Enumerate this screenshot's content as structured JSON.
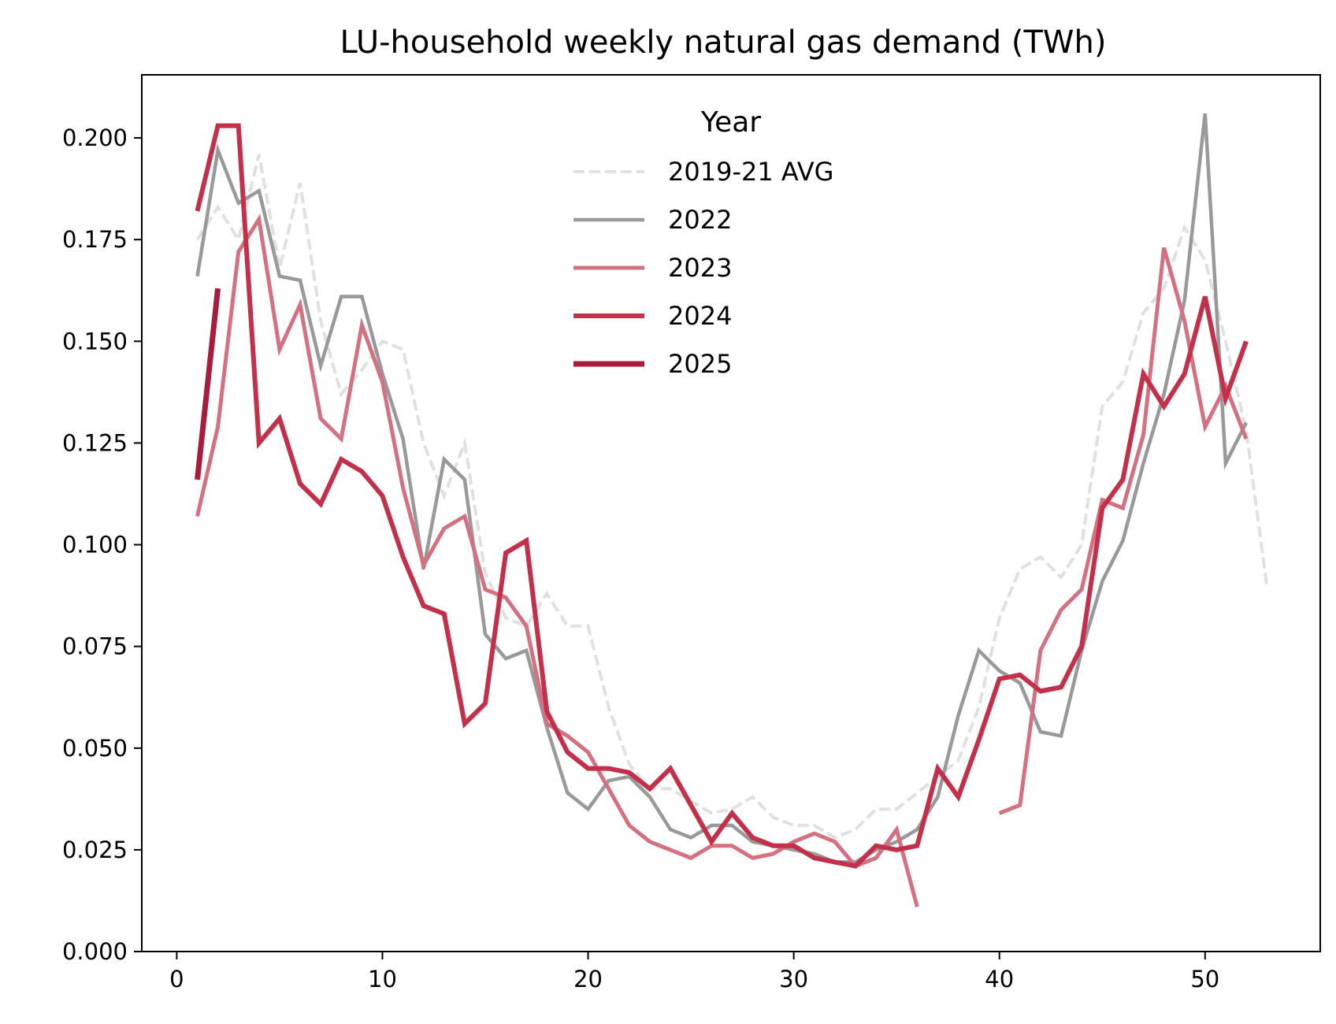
{
  "chart_data": {
    "type": "line",
    "title": "LU-household weekly natural gas demand (TWh)",
    "xlabel": "",
    "ylabel": "",
    "xlim": [
      -1.7,
      55.6
    ],
    "ylim": [
      0,
      0.2155
    ],
    "xticks": [
      0,
      10,
      20,
      30,
      40,
      50
    ],
    "xtick_labels": [
      "0",
      "10",
      "20",
      "30",
      "40",
      "50"
    ],
    "yticks": [
      0,
      0.025,
      0.05,
      0.075,
      0.1,
      0.125,
      0.15,
      0.175,
      0.2
    ],
    "ytick_labels": [
      "0.000",
      "0.025",
      "0.050",
      "0.075",
      "0.100",
      "0.125",
      "0.150",
      "0.175",
      "0.200"
    ],
    "grid": false,
    "legend": {
      "title": "Year",
      "placement": "upper-center"
    },
    "series": [
      {
        "name": "2019-21 AVG",
        "color": "#e0e0e0",
        "dash": true,
        "width": 4,
        "x": [
          1,
          2,
          3,
          4,
          5,
          6,
          7,
          8,
          9,
          10,
          11,
          12,
          13,
          14,
          15,
          16,
          17,
          18,
          19,
          20,
          21,
          22,
          23,
          24,
          25,
          26,
          27,
          28,
          29,
          30,
          31,
          32,
          33,
          34,
          35,
          36,
          37,
          38,
          39,
          40,
          41,
          42,
          43,
          44,
          45,
          46,
          47,
          48,
          49,
          50,
          51,
          52,
          53
        ],
        "y": [
          0.175,
          0.183,
          0.175,
          0.196,
          0.168,
          0.189,
          0.155,
          0.137,
          0.143,
          0.15,
          0.148,
          0.125,
          0.112,
          0.125,
          0.093,
          0.082,
          0.08,
          0.088,
          0.08,
          0.08,
          0.06,
          0.046,
          0.04,
          0.04,
          0.037,
          0.034,
          0.035,
          0.038,
          0.033,
          0.031,
          0.031,
          0.028,
          0.03,
          0.035,
          0.035,
          0.039,
          0.043,
          0.047,
          0.06,
          0.082,
          0.094,
          0.097,
          0.092,
          0.1,
          0.134,
          0.14,
          0.157,
          0.163,
          0.178,
          0.17,
          0.15,
          0.128,
          0.09
        ]
      },
      {
        "name": "2022",
        "color": "#999999",
        "dash": false,
        "width": 4.5,
        "x": [
          1,
          2,
          3,
          4,
          5,
          6,
          7,
          8,
          9,
          10,
          11,
          12,
          13,
          14,
          15,
          16,
          17,
          18,
          19,
          20,
          21,
          22,
          23,
          24,
          25,
          26,
          27,
          28,
          29,
          30,
          31,
          32,
          33,
          34,
          35,
          36,
          37,
          38,
          39,
          40,
          41,
          42,
          43,
          44,
          45,
          46,
          47,
          48,
          49,
          50,
          51,
          52
        ],
        "y": [
          0.166,
          0.197,
          0.184,
          0.187,
          0.166,
          0.165,
          0.144,
          0.161,
          0.161,
          0.142,
          0.126,
          0.094,
          0.121,
          0.116,
          0.078,
          0.072,
          0.074,
          0.055,
          0.039,
          0.035,
          0.042,
          0.043,
          0.038,
          0.03,
          0.028,
          0.031,
          0.031,
          0.027,
          0.026,
          0.025,
          0.024,
          0.022,
          0.022,
          0.025,
          0.027,
          0.03,
          0.038,
          0.058,
          0.074,
          0.069,
          0.066,
          0.054,
          0.053,
          0.074,
          0.091,
          0.101,
          0.12,
          0.137,
          0.16,
          0.206,
          0.12,
          0.13
        ]
      },
      {
        "name": "2023",
        "color": "#d4707f",
        "dash": false,
        "width": 5,
        "x": [
          1,
          2,
          3,
          4,
          5,
          6,
          7,
          8,
          9,
          10,
          11,
          12,
          13,
          14,
          15,
          16,
          17,
          18,
          19,
          20,
          21,
          22,
          23,
          24,
          25,
          26,
          27,
          28,
          29,
          30,
          31,
          32,
          33,
          34,
          35,
          36,
          null,
          40,
          41,
          42,
          43,
          44,
          45,
          46,
          47,
          48,
          49,
          50,
          51,
          52
        ],
        "y": [
          0.107,
          0.129,
          0.172,
          0.18,
          0.148,
          0.159,
          0.131,
          0.126,
          0.154,
          0.14,
          0.114,
          0.095,
          0.104,
          0.107,
          0.089,
          0.087,
          0.08,
          0.056,
          0.053,
          0.049,
          0.04,
          0.031,
          0.027,
          0.025,
          0.023,
          0.026,
          0.026,
          0.023,
          0.024,
          0.027,
          0.029,
          0.027,
          0.021,
          0.023,
          0.03,
          0.011,
          null,
          0.034,
          0.036,
          0.074,
          0.084,
          0.089,
          0.111,
          0.109,
          0.127,
          0.173,
          0.155,
          0.129,
          0.139,
          0.126
        ]
      },
      {
        "name": "2024",
        "color": "#c2304a",
        "dash": false,
        "width": 6,
        "x": [
          1,
          2,
          3,
          4,
          5,
          6,
          7,
          8,
          9,
          10,
          11,
          12,
          13,
          14,
          15,
          16,
          17,
          18,
          19,
          20,
          21,
          22,
          23,
          24,
          25,
          26,
          27,
          28,
          29,
          30,
          31,
          32,
          33,
          34,
          35,
          36,
          37,
          38,
          39,
          40,
          41,
          42,
          43,
          44,
          45,
          46,
          47,
          48,
          49,
          50,
          51,
          52
        ],
        "y": [
          0.182,
          0.203,
          0.203,
          0.125,
          0.131,
          0.115,
          0.11,
          0.121,
          0.118,
          0.112,
          0.097,
          0.085,
          0.083,
          0.056,
          0.061,
          0.098,
          0.101,
          0.059,
          0.049,
          0.045,
          0.045,
          0.044,
          0.04,
          0.045,
          0.036,
          0.027,
          0.034,
          0.028,
          0.026,
          0.026,
          0.023,
          0.022,
          0.021,
          0.026,
          0.025,
          0.026,
          0.045,
          0.038,
          0.052,
          0.067,
          0.068,
          0.064,
          0.065,
          0.075,
          0.109,
          0.116,
          0.142,
          0.134,
          0.142,
          0.161,
          0.136,
          0.15
        ]
      },
      {
        "name": "2025",
        "color": "#a81c3c",
        "dash": false,
        "width": 7,
        "x": [
          1,
          2
        ],
        "y": [
          0.116,
          0.163
        ]
      }
    ]
  }
}
